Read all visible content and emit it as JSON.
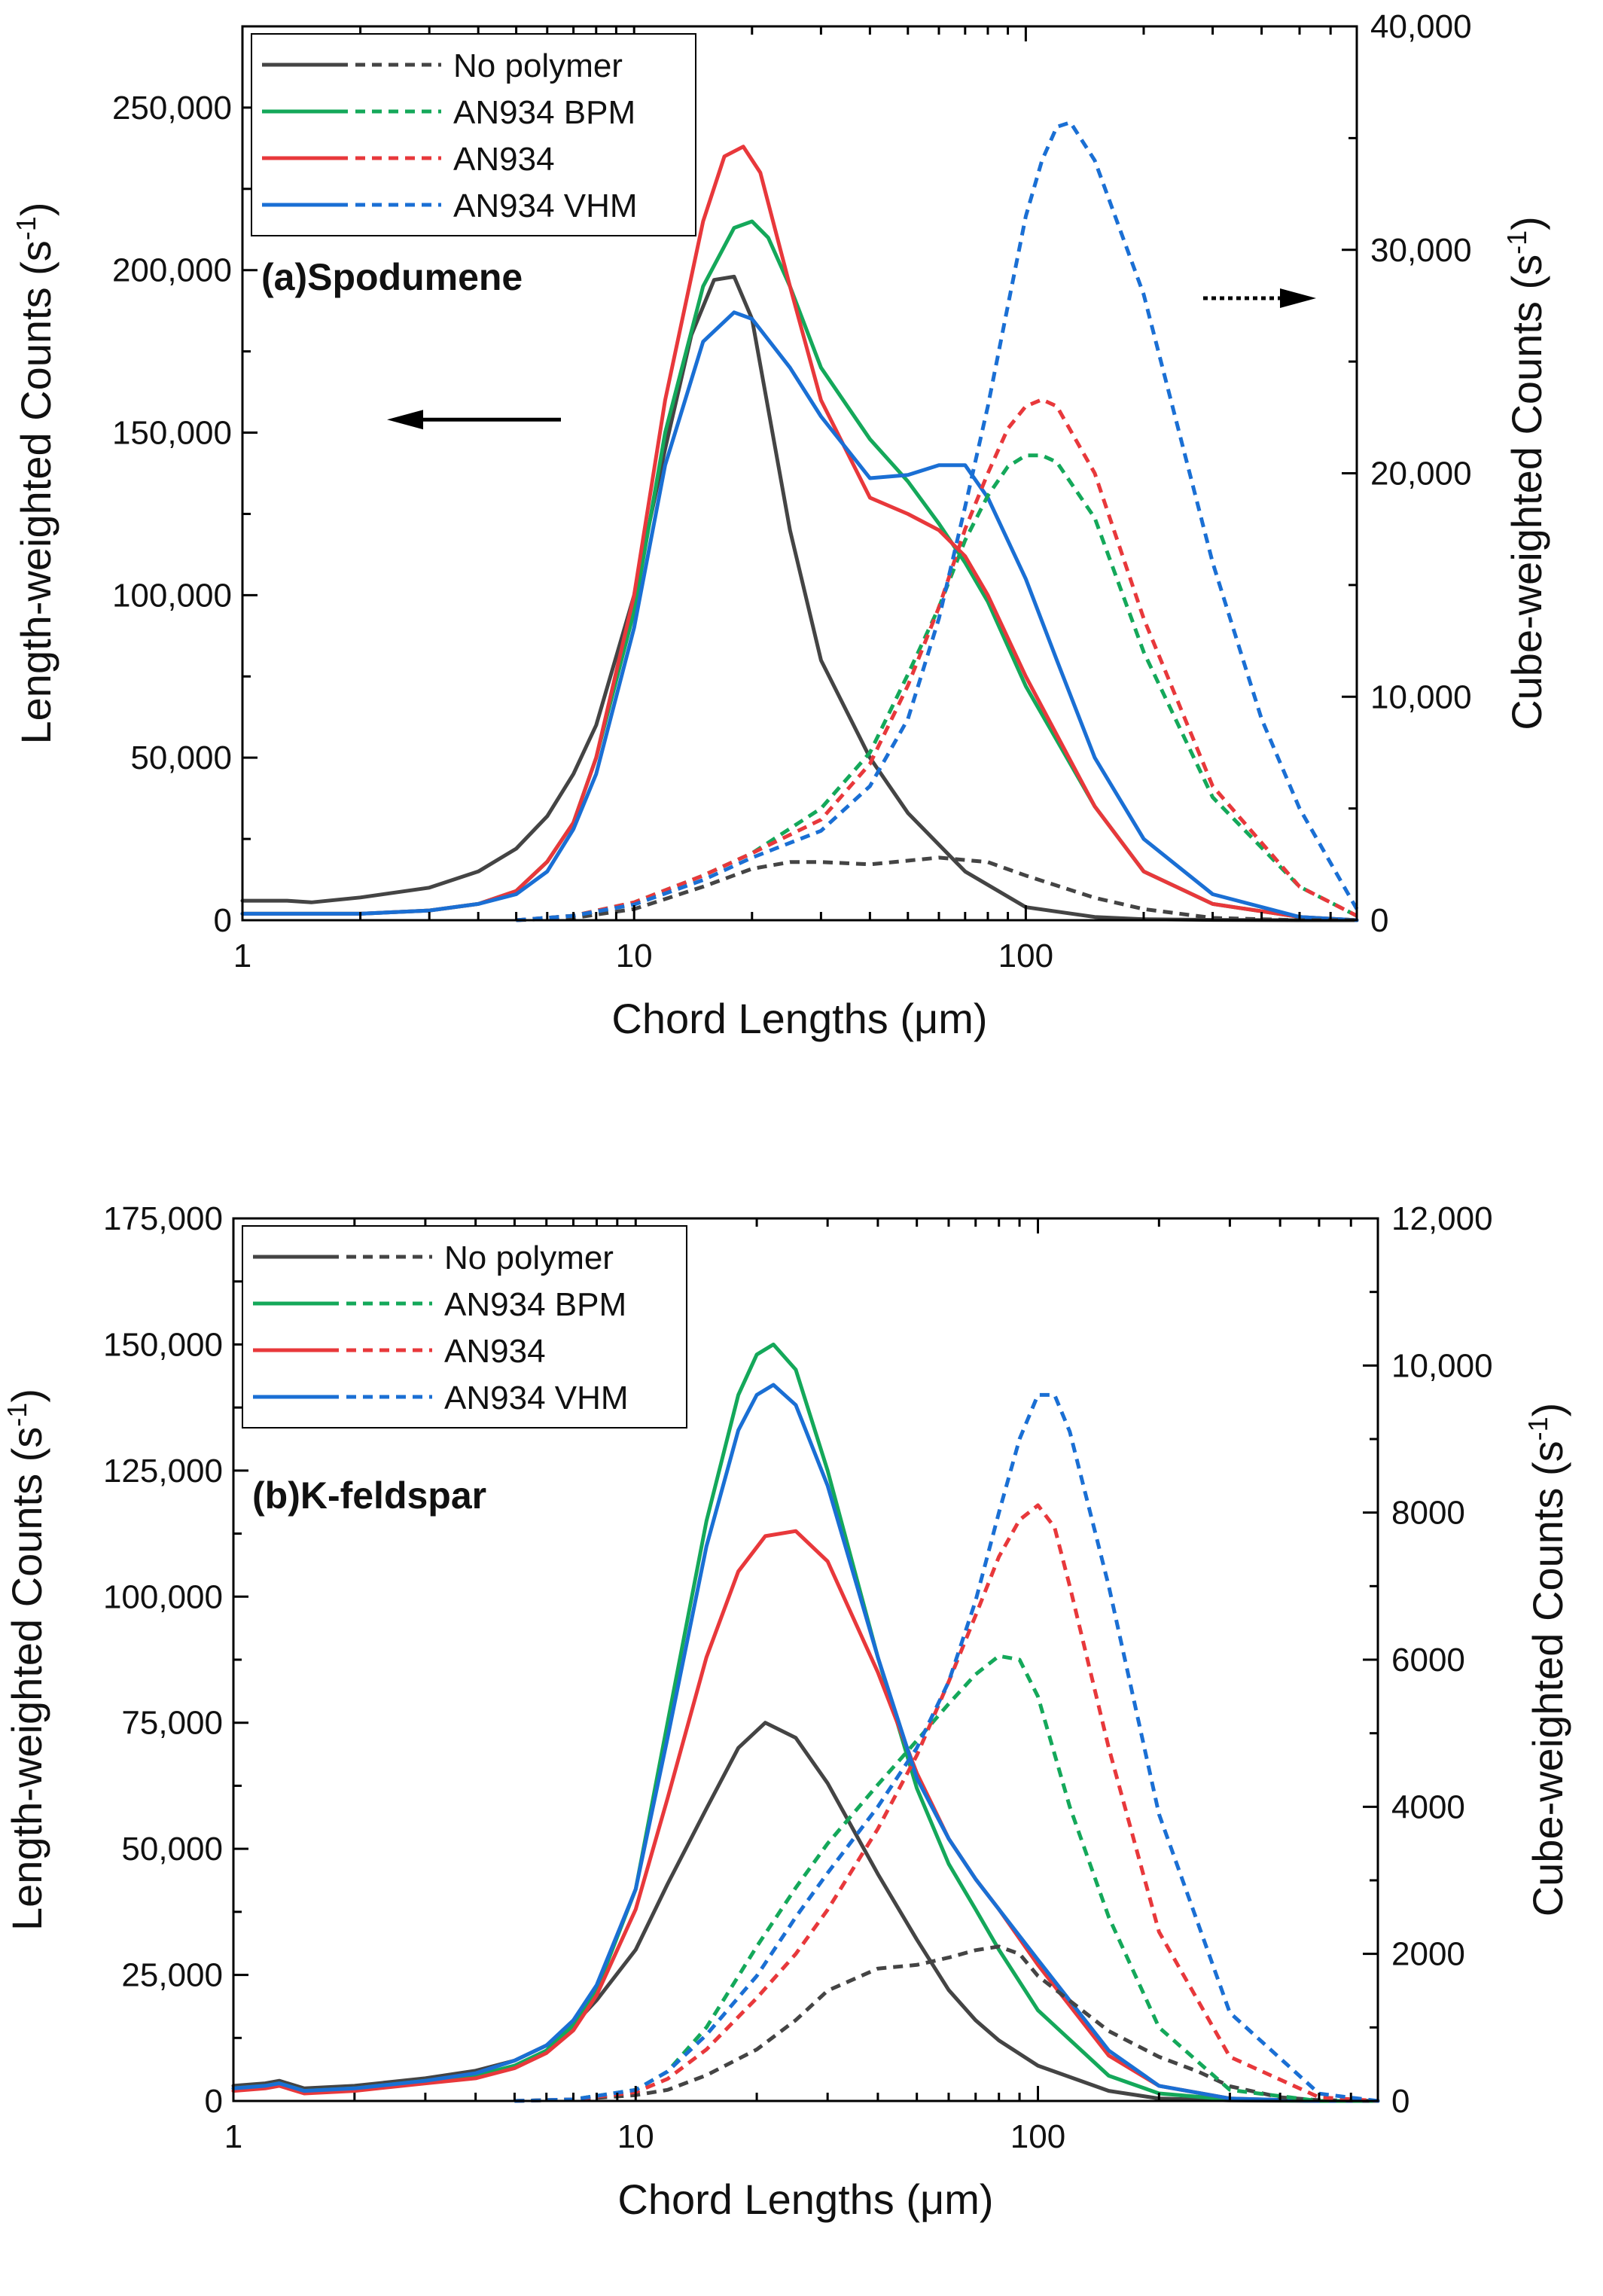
{
  "chart_data": [
    {
      "type": "line",
      "panel_label": "(a)Spodumene",
      "xlabel": "Chord Lengths (μm)",
      "ylabel_left": "Length-weighted Counts (s",
      "ylabel_right": "Cube-weighted Counts (s",
      "ylabel_superscript": "-1",
      "ylabel_close": ")",
      "x_scale": "log",
      "xlim": [
        1,
        700
      ],
      "x_ticks": [
        1,
        10,
        100
      ],
      "x_tick_labels": [
        "1",
        "10",
        "100"
      ],
      "ylim_left": [
        0,
        275000
      ],
      "y_ticks_left": [
        0,
        50000,
        100000,
        150000,
        200000,
        250000
      ],
      "y_tick_labels_left": [
        "0",
        "50,000",
        "100,000",
        "150,000",
        "200,000",
        "250,000"
      ],
      "ylim_right": [
        0,
        40000
      ],
      "y_ticks_right": [
        0,
        10000,
        20000,
        30000,
        40000
      ],
      "y_tick_labels_right": [
        "0",
        "10,000",
        "20,000",
        "30,000",
        "40,000"
      ],
      "legend": [
        "No polymer",
        "AN934 BPM",
        "AN934",
        "AN934 VHM"
      ],
      "legend_position": "top-left",
      "arrows": [
        {
          "direction": "left",
          "style": "solid",
          "meaning": "left axis"
        },
        {
          "direction": "right",
          "style": "dotted",
          "meaning": "right axis"
        }
      ],
      "series": [
        {
          "name": "No polymer",
          "axis": "left",
          "style": "solid",
          "color": "#444444",
          "x": [
            1,
            1.3,
            1.5,
            2,
            3,
            4,
            5,
            6,
            7,
            8,
            10,
            12,
            14,
            16,
            18,
            20,
            25,
            30,
            40,
            50,
            70,
            100,
            150,
            200,
            300,
            500,
            700
          ],
          "y": [
            6000,
            6000,
            5500,
            7000,
            10000,
            15000,
            22000,
            32000,
            45000,
            60000,
            100000,
            145000,
            180000,
            197000,
            198000,
            185000,
            120000,
            80000,
            50000,
            33000,
            15000,
            4000,
            1000,
            300,
            100,
            0,
            0
          ]
        },
        {
          "name": "AN934 BPM",
          "axis": "left",
          "style": "solid",
          "color": "#14a85a",
          "x": [
            1,
            2,
            3,
            4,
            5,
            6,
            7,
            8,
            10,
            12,
            15,
            18,
            20,
            22,
            25,
            30,
            40,
            50,
            60,
            70,
            80,
            100,
            150,
            200,
            300,
            500,
            700
          ],
          "y": [
            2000,
            2000,
            3000,
            5000,
            9000,
            18000,
            30000,
            50000,
            95000,
            150000,
            195000,
            213000,
            215000,
            210000,
            195000,
            170000,
            148000,
            135000,
            122000,
            110000,
            98000,
            72000,
            35000,
            15000,
            5000,
            1000,
            0
          ]
        },
        {
          "name": "AN934",
          "axis": "left",
          "style": "solid",
          "color": "#e8383b",
          "x": [
            1,
            2,
            3,
            4,
            5,
            6,
            7,
            8,
            10,
            12,
            15,
            17,
            19,
            21,
            25,
            30,
            40,
            50,
            60,
            70,
            80,
            100,
            150,
            200,
            300,
            500,
            700
          ],
          "y": [
            2000,
            2000,
            3000,
            5000,
            9000,
            18000,
            30000,
            50000,
            100000,
            160000,
            215000,
            235000,
            238000,
            230000,
            195000,
            160000,
            130000,
            125000,
            120000,
            112000,
            100000,
            75000,
            35000,
            15000,
            5000,
            1000,
            0
          ]
        },
        {
          "name": "AN934 VHM",
          "axis": "left",
          "style": "solid",
          "color": "#1a6fd4",
          "x": [
            1,
            2,
            3,
            4,
            5,
            6,
            7,
            8,
            10,
            12,
            15,
            18,
            20,
            25,
            30,
            40,
            50,
            60,
            70,
            80,
            100,
            120,
            150,
            200,
            300,
            500,
            700
          ],
          "y": [
            2000,
            2000,
            3000,
            5000,
            8000,
            15000,
            28000,
            45000,
            90000,
            140000,
            178000,
            187000,
            185000,
            170000,
            155000,
            136000,
            137000,
            140000,
            140000,
            130000,
            105000,
            80000,
            50000,
            25000,
            8000,
            1000,
            0
          ]
        },
        {
          "name": "No polymer",
          "axis": "right",
          "style": "dashed",
          "color": "#444444",
          "x": [
            5,
            7,
            10,
            15,
            20,
            25,
            30,
            40,
            60,
            80,
            100,
            150,
            200,
            300,
            500,
            700
          ],
          "y": [
            0,
            100,
            500,
            1500,
            2300,
            2600,
            2600,
            2500,
            2800,
            2600,
            2000,
            1000,
            500,
            100,
            0,
            0
          ]
        },
        {
          "name": "AN934 BPM",
          "axis": "right",
          "style": "dashed",
          "color": "#14a85a",
          "x": [
            5,
            7,
            10,
            15,
            20,
            30,
            40,
            50,
            60,
            70,
            80,
            90,
            100,
            110,
            120,
            150,
            200,
            300,
            500,
            700
          ],
          "y": [
            0,
            200,
            800,
            2000,
            3000,
            5000,
            7500,
            11000,
            14000,
            17000,
            19000,
            20300,
            20800,
            20800,
            20500,
            18000,
            12000,
            5500,
            1500,
            200
          ]
        },
        {
          "name": "AN934",
          "axis": "right",
          "style": "dashed",
          "color": "#e8383b",
          "x": [
            5,
            7,
            10,
            15,
            20,
            30,
            40,
            50,
            60,
            70,
            80,
            90,
            100,
            110,
            120,
            150,
            200,
            300,
            500,
            700
          ],
          "y": [
            0,
            200,
            800,
            2000,
            3000,
            4500,
            7000,
            10500,
            14000,
            17500,
            20000,
            22000,
            23000,
            23300,
            23000,
            20000,
            13500,
            6000,
            1500,
            200
          ]
        },
        {
          "name": "AN934 VHM",
          "axis": "right",
          "style": "dashed",
          "color": "#1a6fd4",
          "x": [
            5,
            7,
            10,
            15,
            20,
            30,
            40,
            50,
            60,
            70,
            80,
            90,
            100,
            110,
            120,
            130,
            150,
            200,
            300,
            400,
            500,
            700
          ],
          "y": [
            0,
            200,
            700,
            1800,
            2800,
            4000,
            6000,
            9000,
            13500,
            18500,
            23000,
            27500,
            31500,
            34000,
            35500,
            35700,
            34000,
            28000,
            16000,
            9000,
            5000,
            500
          ]
        }
      ]
    },
    {
      "type": "line",
      "panel_label": "(b)K-feldspar",
      "xlabel": "Chord Lengths (μm)",
      "ylabel_left": "Length-weighted Counts (s",
      "ylabel_right": "Cube-weighted Counts (s",
      "ylabel_superscript": "-1",
      "ylabel_close": ")",
      "x_scale": "log",
      "xlim": [
        1,
        700
      ],
      "x_ticks": [
        1,
        10,
        100
      ],
      "x_tick_labels": [
        "1",
        "10",
        "100"
      ],
      "ylim_left": [
        0,
        175000
      ],
      "y_ticks_left": [
        0,
        25000,
        50000,
        75000,
        100000,
        125000,
        150000,
        175000
      ],
      "y_tick_labels_left": [
        "0",
        "25,000",
        "50,000",
        "75,000",
        "100,000",
        "125,000",
        "150,000",
        "175,000"
      ],
      "ylim_right": [
        0,
        12000
      ],
      "y_ticks_right": [
        0,
        2000,
        4000,
        6000,
        8000,
        10000,
        12000
      ],
      "y_tick_labels_right": [
        "0",
        "2000",
        "4000",
        "6000",
        "8000",
        "10,000",
        "12,000"
      ],
      "legend": [
        "No polymer",
        "AN934 BPM",
        "AN934",
        "AN934 VHM"
      ],
      "legend_position": "top-left",
      "series": [
        {
          "name": "No polymer",
          "axis": "left",
          "style": "solid",
          "color": "#444444",
          "x": [
            1,
            1.2,
            1.3,
            1.5,
            2,
            3,
            4,
            5,
            6,
            7,
            8,
            10,
            12,
            15,
            18,
            21,
            25,
            30,
            40,
            50,
            60,
            70,
            80,
            100,
            150,
            200,
            300,
            500,
            700
          ],
          "y": [
            3000,
            3500,
            4000,
            2500,
            3000,
            4500,
            6000,
            8000,
            11000,
            15000,
            20000,
            30000,
            43000,
            58000,
            70000,
            75000,
            72000,
            63000,
            45000,
            32000,
            22000,
            16000,
            12000,
            7000,
            2000,
            500,
            100,
            0,
            0
          ]
        },
        {
          "name": "AN934 BPM",
          "axis": "left",
          "style": "solid",
          "color": "#14a85a",
          "x": [
            1,
            1.2,
            1.3,
            1.5,
            2,
            3,
            4,
            5,
            6,
            7,
            8,
            10,
            12,
            15,
            18,
            20,
            22,
            25,
            30,
            40,
            50,
            60,
            70,
            80,
            100,
            150,
            200,
            300,
            500,
            700
          ],
          "y": [
            2500,
            3000,
            3500,
            2000,
            2500,
            4000,
            5000,
            7000,
            10000,
            15000,
            22000,
            42000,
            75000,
            115000,
            140000,
            148000,
            150000,
            145000,
            125000,
            88000,
            62000,
            47000,
            38000,
            30000,
            18000,
            5000,
            1500,
            300,
            0,
            0
          ]
        },
        {
          "name": "AN934",
          "axis": "left",
          "style": "solid",
          "color": "#e8383b",
          "x": [
            1,
            1.2,
            1.3,
            1.5,
            2,
            3,
            4,
            5,
            6,
            7,
            8,
            10,
            12,
            15,
            18,
            21,
            25,
            30,
            40,
            50,
            60,
            70,
            80,
            100,
            150,
            200,
            300,
            500,
            700
          ],
          "y": [
            2000,
            2500,
            3000,
            1500,
            2000,
            3500,
            4500,
            6500,
            9500,
            14000,
            21000,
            38000,
            60000,
            88000,
            105000,
            112000,
            113000,
            107000,
            85000,
            65000,
            52000,
            44000,
            38000,
            27000,
            9000,
            3000,
            500,
            0,
            0
          ]
        },
        {
          "name": "AN934 VHM",
          "axis": "left",
          "style": "solid",
          "color": "#1a6fd4",
          "x": [
            1,
            1.2,
            1.3,
            1.5,
            2,
            3,
            4,
            5,
            6,
            7,
            8,
            10,
            12,
            15,
            18,
            20,
            22,
            25,
            30,
            40,
            50,
            60,
            70,
            80,
            100,
            150,
            200,
            300,
            500,
            700
          ],
          "y": [
            2500,
            3000,
            3500,
            2000,
            2500,
            4000,
            5500,
            8000,
            11000,
            16000,
            23000,
            42000,
            72000,
            110000,
            133000,
            140000,
            142000,
            138000,
            122000,
            88000,
            64000,
            52000,
            44000,
            38000,
            28000,
            10000,
            3000,
            500,
            0,
            0
          ]
        },
        {
          "name": "No polymer",
          "axis": "right",
          "style": "dashed",
          "color": "#444444",
          "x": [
            5,
            7,
            10,
            12,
            15,
            20,
            25,
            30,
            40,
            50,
            60,
            70,
            80,
            90,
            100,
            150,
            200,
            250,
            300,
            400,
            500,
            700
          ],
          "y": [
            0,
            20,
            80,
            150,
            350,
            700,
            1100,
            1500,
            1800,
            1850,
            1950,
            2050,
            2100,
            2000,
            1700,
            950,
            600,
            400,
            200,
            50,
            10,
            0
          ]
        },
        {
          "name": "AN934 BPM",
          "axis": "right",
          "style": "dashed",
          "color": "#14a85a",
          "x": [
            5,
            7,
            10,
            12,
            15,
            20,
            25,
            30,
            40,
            50,
            60,
            70,
            80,
            90,
            100,
            120,
            150,
            200,
            300,
            500,
            700
          ],
          "y": [
            0,
            20,
            150,
            400,
            1000,
            2100,
            2900,
            3500,
            4300,
            4900,
            5400,
            5800,
            6050,
            6000,
            5500,
            4000,
            2500,
            1000,
            150,
            0,
            0
          ]
        },
        {
          "name": "AN934",
          "axis": "right",
          "style": "dashed",
          "color": "#e8383b",
          "x": [
            5,
            7,
            10,
            12,
            15,
            20,
            25,
            30,
            40,
            50,
            60,
            70,
            80,
            90,
            100,
            110,
            120,
            150,
            200,
            300,
            500,
            700
          ],
          "y": [
            0,
            20,
            120,
            300,
            700,
            1400,
            2000,
            2600,
            3700,
            4700,
            5700,
            6600,
            7400,
            7900,
            8100,
            7800,
            7000,
            4800,
            2300,
            600,
            50,
            0
          ]
        },
        {
          "name": "AN934 VHM",
          "axis": "right",
          "style": "dashed",
          "color": "#1a6fd4",
          "x": [
            5,
            7,
            10,
            12,
            15,
            20,
            25,
            30,
            40,
            50,
            60,
            70,
            80,
            90,
            100,
            110,
            120,
            150,
            200,
            300,
            500,
            700
          ],
          "y": [
            0,
            20,
            150,
            400,
            900,
            1700,
            2500,
            3100,
            4000,
            4800,
            5700,
            6800,
            8000,
            9000,
            9600,
            9600,
            9100,
            7000,
            3900,
            1200,
            100,
            0
          ]
        }
      ]
    }
  ]
}
